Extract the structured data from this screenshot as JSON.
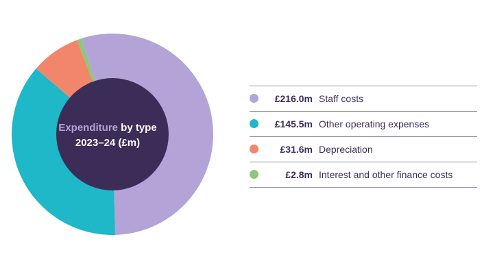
{
  "chart_data": {
    "type": "pie",
    "title_parts": [
      "Expenditure",
      "by type",
      "2023–24 (£m)"
    ],
    "unit": "£m",
    "series": [
      {
        "name": "Staff costs",
        "value": 216.0,
        "display": "£216.0m",
        "color": "#b3a3d6"
      },
      {
        "name": "Other operating expenses",
        "value": 145.5,
        "display": "£145.5m",
        "color": "#1eb8c8"
      },
      {
        "name": "Depreciation",
        "value": 31.6,
        "display": "£31.6m",
        "color": "#f2866b"
      },
      {
        "name": "Interest and other finance costs",
        "value": 2.8,
        "display": "£2.8m",
        "color": "#8bc87a"
      }
    ],
    "center_color": "#3b2d57",
    "highlight_color": "#b3a3d6",
    "legend_position": "right"
  }
}
